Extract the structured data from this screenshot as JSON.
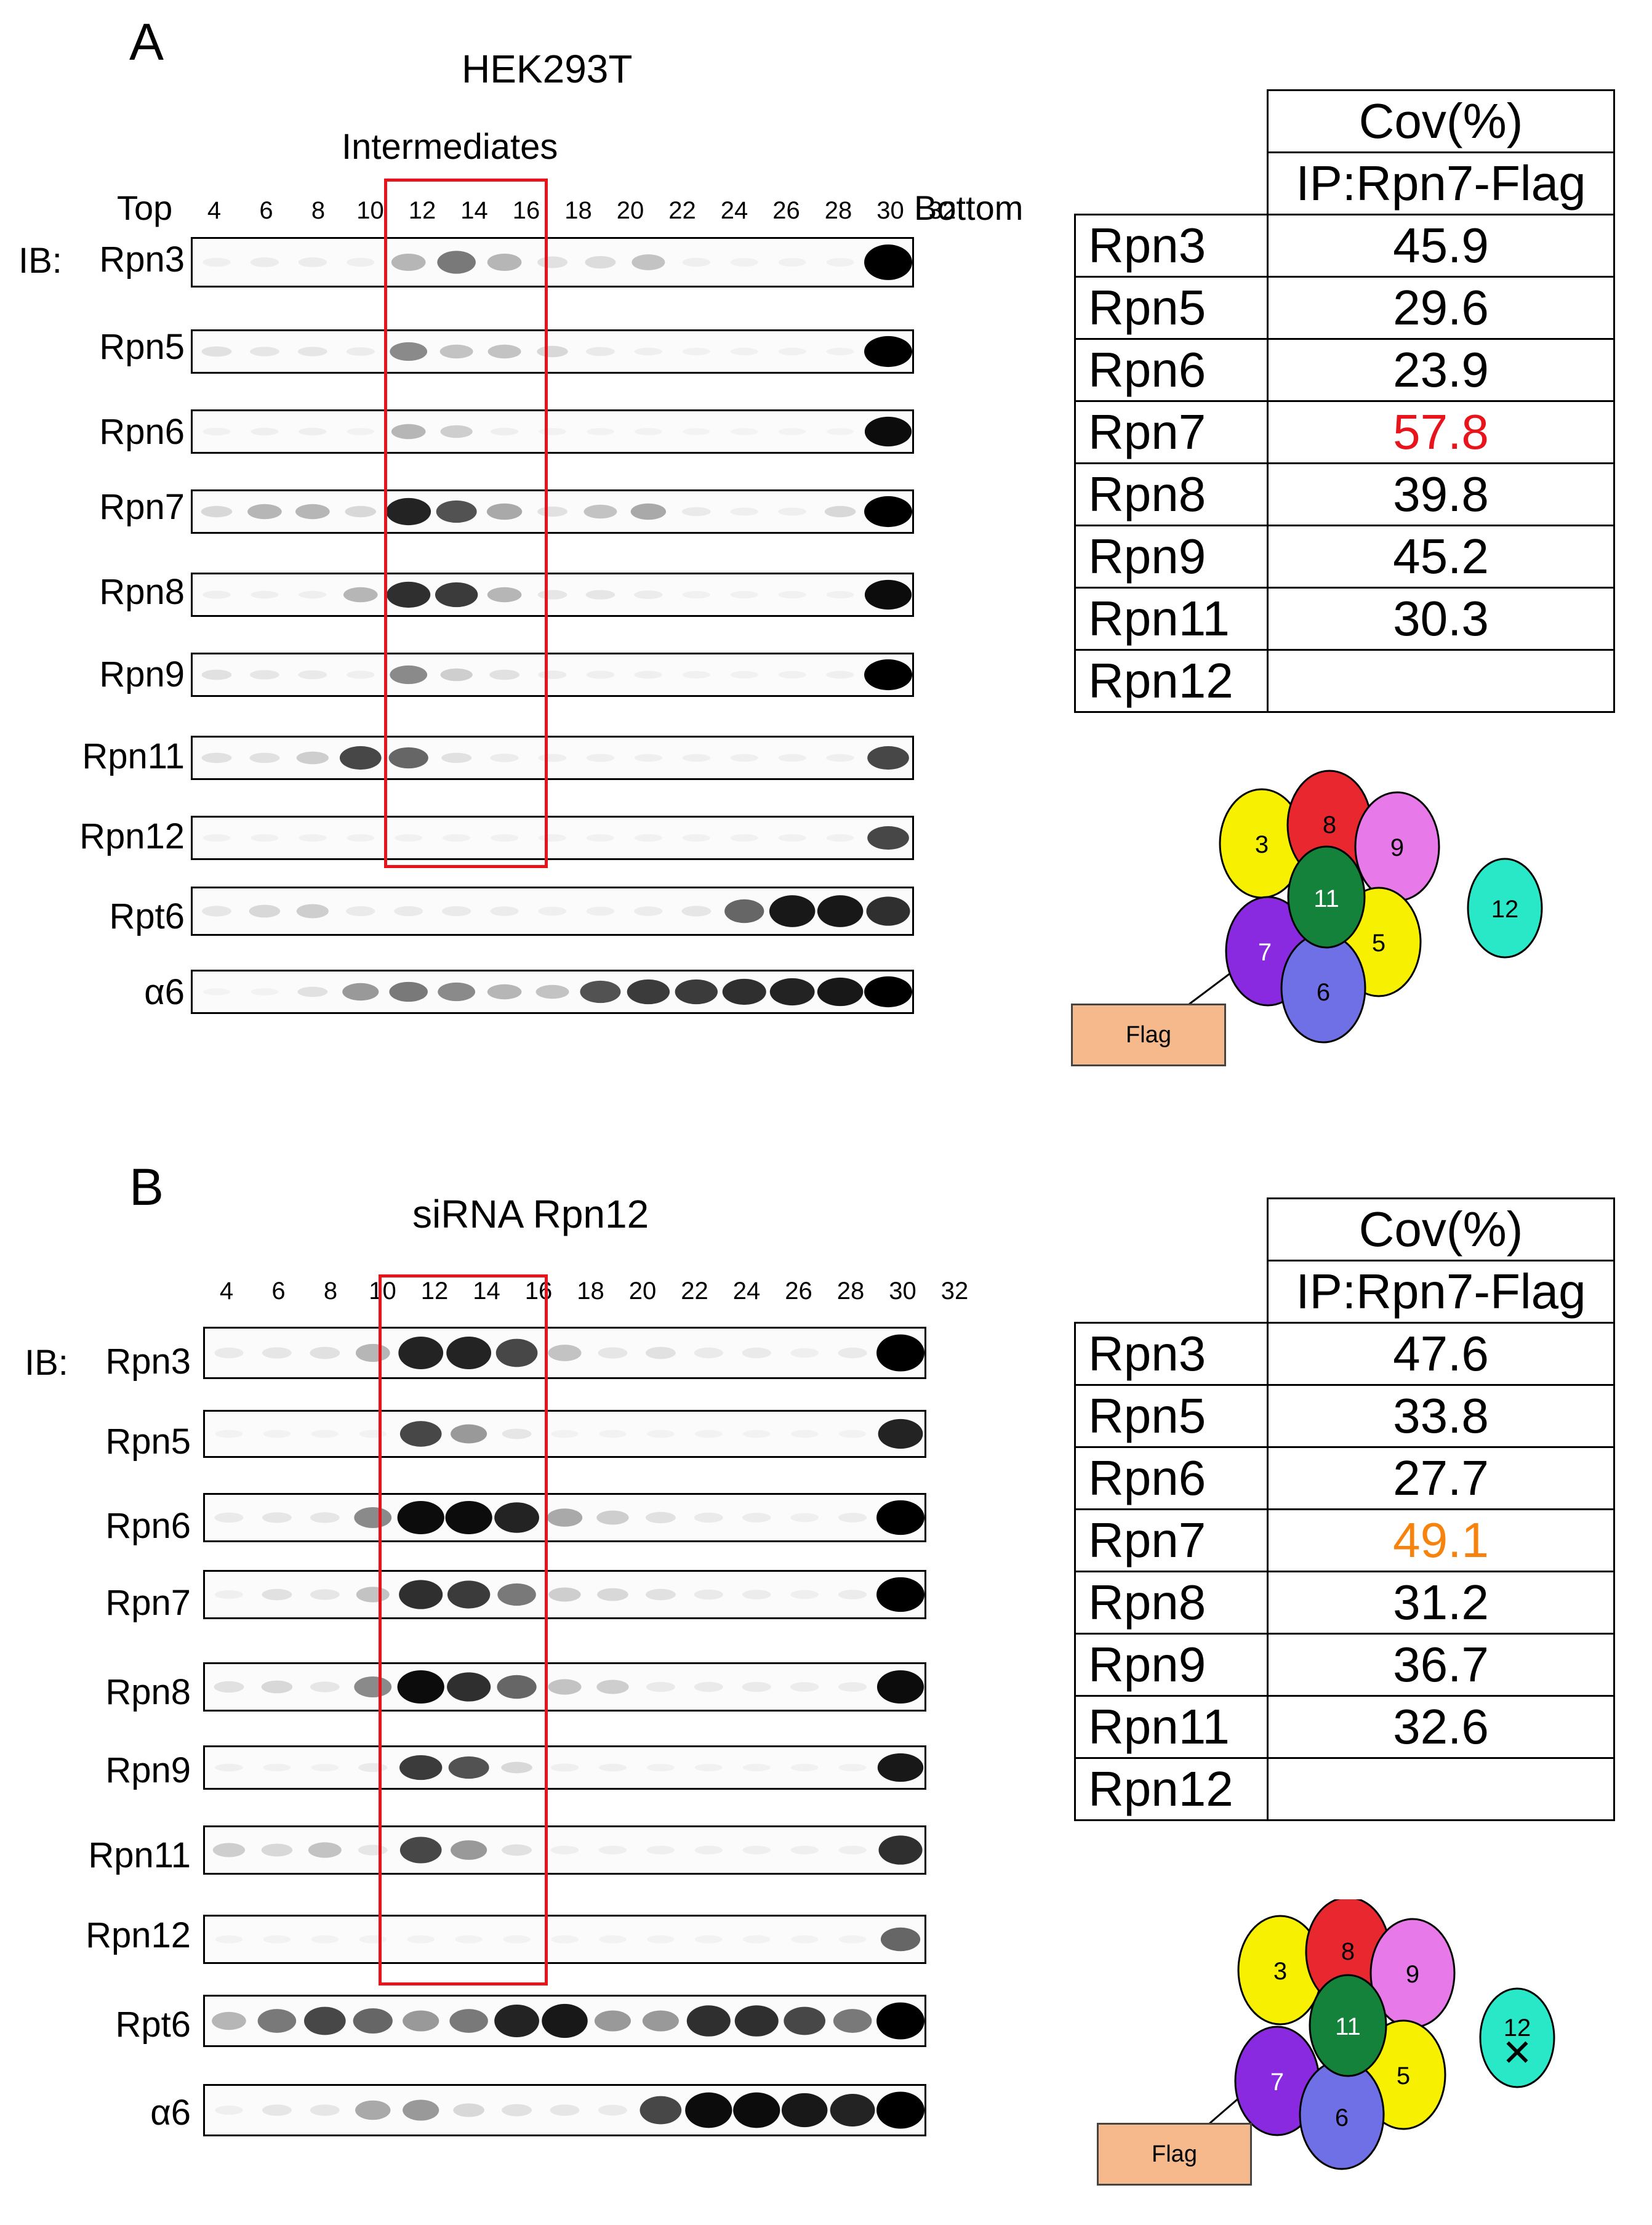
{
  "panel_a": {
    "letter": "A",
    "title": "HEK293T",
    "region_label": "Intermediates",
    "top_label": "Top",
    "bottom_label": "Bottom",
    "ib_label": "IB:",
    "fractions": [
      "4",
      "6",
      "8",
      "10",
      "12",
      "14",
      "16",
      "18",
      "20",
      "22",
      "24",
      "26",
      "28",
      "30",
      "32"
    ],
    "blots": [
      {
        "label": "Rpn3",
        "bands": [
          0.05,
          0.08,
          0.08,
          0.05,
          0.35,
          0.55,
          0.35,
          0.15,
          0.18,
          0.3,
          0.05,
          0.04,
          0.04,
          0.04,
          1.0
        ]
      },
      {
        "label": "Rpn5",
        "bands": [
          0.15,
          0.12,
          0.12,
          0.08,
          0.5,
          0.3,
          0.3,
          0.2,
          0.1,
          0.05,
          0.04,
          0.04,
          0.04,
          0.04,
          1.0
        ]
      },
      {
        "label": "Rpn6",
        "bands": [
          0.04,
          0.05,
          0.05,
          0.03,
          0.35,
          0.25,
          0.05,
          0.03,
          0.03,
          0.03,
          0.02,
          0.02,
          0.02,
          0.02,
          0.95
        ]
      },
      {
        "label": "Rpn7",
        "bands": [
          0.2,
          0.35,
          0.35,
          0.2,
          0.85,
          0.65,
          0.4,
          0.15,
          0.3,
          0.4,
          0.1,
          0.06,
          0.06,
          0.2,
          1.0
        ]
      },
      {
        "label": "Rpn8",
        "bands": [
          0.06,
          0.05,
          0.05,
          0.35,
          0.8,
          0.75,
          0.35,
          0.12,
          0.12,
          0.08,
          0.04,
          0.04,
          0.04,
          0.04,
          0.95
        ]
      },
      {
        "label": "Rpn9",
        "bands": [
          0.15,
          0.12,
          0.1,
          0.06,
          0.5,
          0.25,
          0.15,
          0.08,
          0.06,
          0.05,
          0.04,
          0.04,
          0.04,
          0.05,
          1.0
        ]
      },
      {
        "label": "Rpn11",
        "bands": [
          0.15,
          0.15,
          0.25,
          0.7,
          0.6,
          0.15,
          0.08,
          0.06,
          0.06,
          0.05,
          0.05,
          0.05,
          0.05,
          0.05,
          0.7
        ]
      },
      {
        "label": "Rpn12",
        "bands": [
          0.04,
          0.04,
          0.04,
          0.04,
          0.04,
          0.04,
          0.04,
          0.04,
          0.04,
          0.04,
          0.04,
          0.04,
          0.04,
          0.04,
          0.7
        ]
      },
      {
        "label": "Rpt6",
        "bands": [
          0.12,
          0.2,
          0.25,
          0.1,
          0.1,
          0.1,
          0.08,
          0.06,
          0.06,
          0.08,
          0.12,
          0.6,
          0.9,
          0.9,
          0.8
        ]
      },
      {
        "label": "α6",
        "bands": [
          0.02,
          0.03,
          0.15,
          0.45,
          0.55,
          0.5,
          0.35,
          0.3,
          0.65,
          0.75,
          0.75,
          0.8,
          0.85,
          0.9,
          1.0
        ]
      }
    ],
    "table": {
      "header_top": "Cov(%)",
      "header_sub": "IP:Rpn7-Flag",
      "rows": [
        {
          "protein": "Rpn3",
          "value": "45.9"
        },
        {
          "protein": "Rpn5",
          "value": "29.6"
        },
        {
          "protein": "Rpn6",
          "value": "23.9"
        },
        {
          "protein": "Rpn7",
          "value": "57.8"
        },
        {
          "protein": "Rpn8",
          "value": "39.8"
        },
        {
          "protein": "Rpn9",
          "value": "45.2"
        },
        {
          "protein": "Rpn11",
          "value": "30.3"
        },
        {
          "protein": "Rpn12",
          "value": ""
        }
      ],
      "highlight_color": "#e8141b"
    },
    "diagram": {
      "subunits": [
        "3",
        "8",
        "9",
        "11",
        "7",
        "5",
        "6",
        "12"
      ],
      "flag_label": "Flag"
    }
  },
  "panel_b": {
    "letter": "B",
    "title": "siRNA Rpn12",
    "ib_label": "IB:",
    "fractions": [
      "4",
      "6",
      "8",
      "10",
      "12",
      "14",
      "16",
      "18",
      "20",
      "22",
      "24",
      "26",
      "28",
      "30",
      "32"
    ],
    "blots": [
      {
        "label": "Rpn3",
        "bands": [
          0.1,
          0.12,
          0.15,
          0.35,
          0.85,
          0.85,
          0.7,
          0.3,
          0.12,
          0.15,
          0.1,
          0.1,
          0.06,
          0.1,
          1.0
        ]
      },
      {
        "label": "Rpn5",
        "bands": [
          0.03,
          0.03,
          0.03,
          0.03,
          0.7,
          0.45,
          0.12,
          0.03,
          0.03,
          0.03,
          0.03,
          0.03,
          0.03,
          0.03,
          0.85
        ]
      },
      {
        "label": "Rpn6",
        "bands": [
          0.1,
          0.12,
          0.12,
          0.5,
          0.95,
          0.95,
          0.85,
          0.4,
          0.25,
          0.15,
          0.1,
          0.08,
          0.06,
          0.08,
          1.0
        ]
      },
      {
        "label": "Rpn7",
        "bands": [
          0.05,
          0.15,
          0.12,
          0.3,
          0.8,
          0.75,
          0.55,
          0.25,
          0.2,
          0.15,
          0.1,
          0.08,
          0.06,
          0.08,
          1.0
        ]
      },
      {
        "label": "Rpn8",
        "bands": [
          0.15,
          0.2,
          0.12,
          0.5,
          0.95,
          0.8,
          0.6,
          0.3,
          0.25,
          0.1,
          0.1,
          0.1,
          0.08,
          0.08,
          0.95
        ]
      },
      {
        "label": "Rpn9",
        "bands": [
          0.05,
          0.04,
          0.04,
          0.1,
          0.75,
          0.65,
          0.2,
          0.06,
          0.05,
          0.04,
          0.04,
          0.04,
          0.04,
          0.04,
          0.9
        ]
      },
      {
        "label": "Rpn11",
        "bands": [
          0.25,
          0.2,
          0.3,
          0.12,
          0.7,
          0.45,
          0.15,
          0.05,
          0.05,
          0.05,
          0.05,
          0.05,
          0.05,
          0.05,
          0.8
        ]
      },
      {
        "label": "Rpn12",
        "bands": [
          0.03,
          0.03,
          0.03,
          0.03,
          0.03,
          0.03,
          0.03,
          0.03,
          0.03,
          0.03,
          0.03,
          0.03,
          0.03,
          0.03,
          0.6
        ]
      },
      {
        "label": "Rpt6",
        "bands": [
          0.35,
          0.55,
          0.7,
          0.6,
          0.45,
          0.55,
          0.85,
          0.9,
          0.45,
          0.45,
          0.8,
          0.8,
          0.7,
          0.55,
          1.0
        ]
      },
      {
        "label": "α6",
        "bands": [
          0.05,
          0.12,
          0.12,
          0.4,
          0.45,
          0.2,
          0.15,
          0.12,
          0.1,
          0.7,
          0.95,
          0.95,
          0.9,
          0.85,
          1.0
        ]
      }
    ],
    "table": {
      "header_top": "Cov(%)",
      "header_sub": "IP:Rpn7-Flag",
      "rows": [
        {
          "protein": "Rpn3",
          "value": "47.6"
        },
        {
          "protein": "Rpn5",
          "value": "33.8"
        },
        {
          "protein": "Rpn6",
          "value": "27.7"
        },
        {
          "protein": "Rpn7",
          "value": "49.1"
        },
        {
          "protein": "Rpn8",
          "value": "31.2"
        },
        {
          "protein": "Rpn9",
          "value": "36.7"
        },
        {
          "protein": "Rpn11",
          "value": "32.6"
        },
        {
          "protein": "Rpn12",
          "value": ""
        }
      ],
      "highlight_color": "#f7830f"
    },
    "diagram": {
      "subunits": [
        "3",
        "8",
        "9",
        "11",
        "7",
        "5",
        "6",
        "12"
      ],
      "flag_label": "Flag",
      "knockdown_mark": "✕"
    }
  },
  "colors": {
    "red_box": "#e8141b",
    "sub3": "#f7f000",
    "sub8": "#e8282e",
    "sub9": "#e879e8",
    "sub11": "#14823a",
    "sub7": "#8a2ae0",
    "sub5": "#f7f000",
    "sub6": "#6f6fe6",
    "sub12": "#28e8c8",
    "flag": "#f5b98c"
  }
}
